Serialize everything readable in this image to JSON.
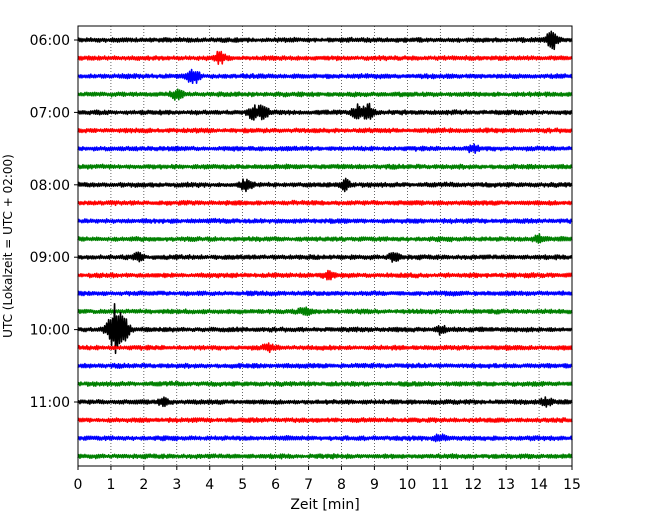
{
  "chart_data": {
    "type": "line",
    "title": "",
    "xlabel": "Zeit  [min]",
    "ylabel": "UTC (Lokalzeit = UTC + 02:00)",
    "xlim": [
      0,
      15
    ],
    "x_ticks": [
      "0",
      "1",
      "2",
      "3",
      "4",
      "5",
      "6",
      "7",
      "8",
      "9",
      "10",
      "11",
      "12",
      "13",
      "14",
      "15"
    ],
    "y_ticks": [
      "06:00",
      "07:00",
      "08:00",
      "09:00",
      "10:00",
      "11:00"
    ],
    "grid_x": true,
    "trace_interval_minutes": 15,
    "start_time": "06:00",
    "trace_count": 24,
    "colors": [
      "#000000",
      "#ff0000",
      "#0000ff",
      "#008000"
    ],
    "events": [
      {
        "row": 0,
        "minute": 14.4,
        "amplitude": 9
      },
      {
        "row": 1,
        "minute": 4.3,
        "amplitude": 5
      },
      {
        "row": 2,
        "minute": 3.5,
        "amplitude": 8
      },
      {
        "row": 3,
        "minute": 3.0,
        "amplitude": 4
      },
      {
        "row": 4,
        "minute": 5.3,
        "amplitude": 6
      },
      {
        "row": 4,
        "minute": 5.6,
        "amplitude": 7
      },
      {
        "row": 4,
        "minute": 8.5,
        "amplitude": 6
      },
      {
        "row": 4,
        "minute": 8.8,
        "amplitude": 8
      },
      {
        "row": 6,
        "minute": 12.0,
        "amplitude": 3
      },
      {
        "row": 8,
        "minute": 5.1,
        "amplitude": 5
      },
      {
        "row": 8,
        "minute": 8.1,
        "amplitude": 5
      },
      {
        "row": 11,
        "minute": 14.0,
        "amplitude": 4
      },
      {
        "row": 12,
        "minute": 1.8,
        "amplitude": 4
      },
      {
        "row": 12,
        "minute": 9.6,
        "amplitude": 4
      },
      {
        "row": 13,
        "minute": 7.6,
        "amplitude": 3
      },
      {
        "row": 15,
        "minute": 6.9,
        "amplitude": 3
      },
      {
        "row": 16,
        "minute": 1.2,
        "amplitude": 28
      },
      {
        "row": 16,
        "minute": 11.0,
        "amplitude": 4
      },
      {
        "row": 17,
        "minute": 5.8,
        "amplitude": 3
      },
      {
        "row": 20,
        "minute": 14.2,
        "amplitude": 4
      },
      {
        "row": 20,
        "minute": 2.6,
        "amplitude": 3
      },
      {
        "row": 22,
        "minute": 11.0,
        "amplitude": 3
      }
    ]
  }
}
